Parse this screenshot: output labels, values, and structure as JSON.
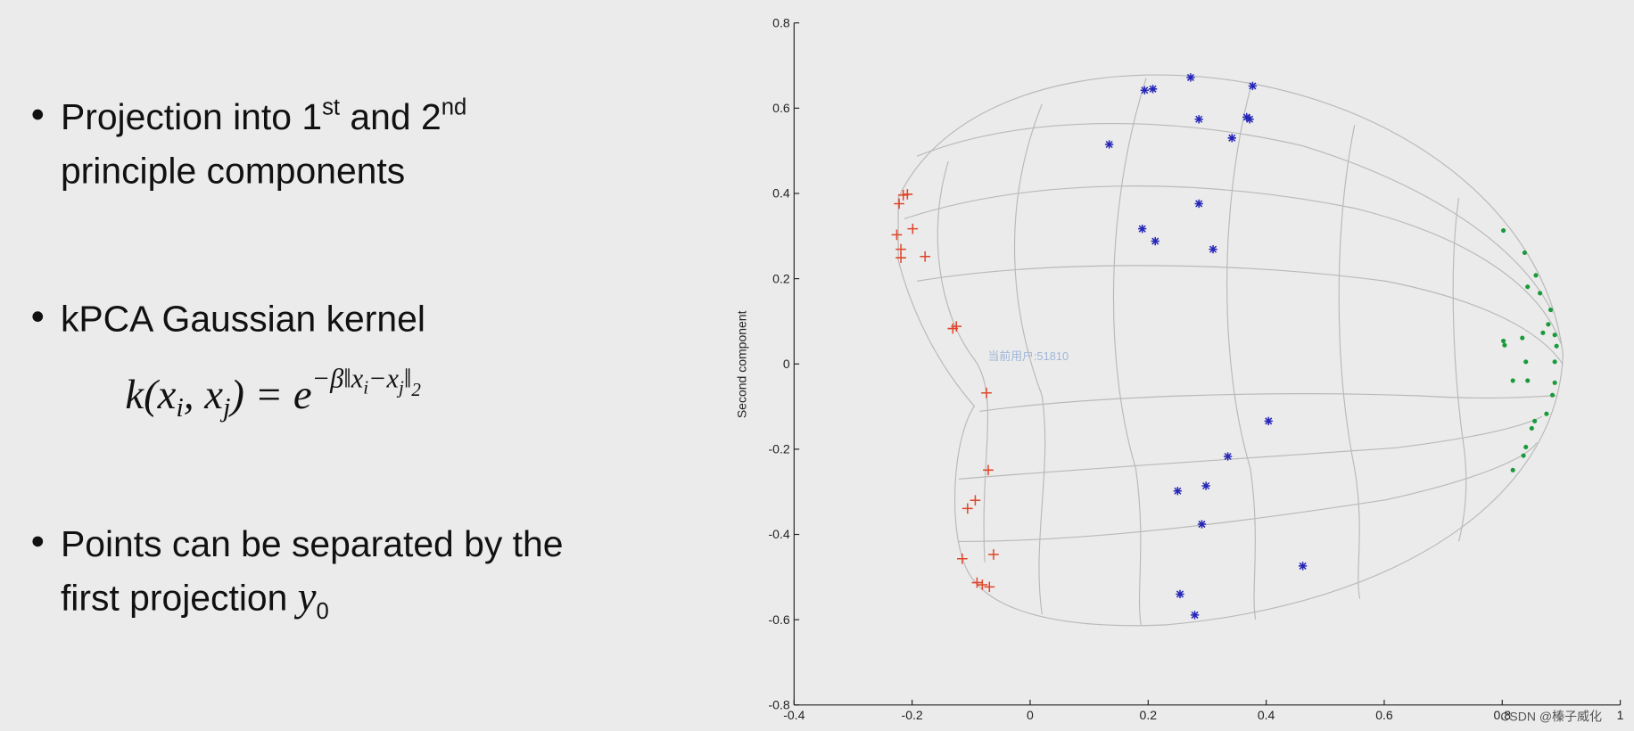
{
  "slide": {
    "bullets": [
      {
        "line1": [
          "Projection into 1",
          "st",
          " and 2",
          "nd"
        ],
        "line2": "principle components"
      },
      {
        "line1": "kPCA Gaussian kernel",
        "formula": [
          "k(",
          "x",
          "i",
          ", ",
          "x",
          "j",
          ") = ",
          "e",
          "−β‖x",
          "i",
          "−x",
          "j",
          "‖",
          "2"
        ]
      },
      {
        "line1": "Points can be separated by the",
        "line2": [
          "first projection ",
          "y",
          "0"
        ]
      }
    ],
    "watermark": "当前用户:51810",
    "credit": "CSDN @榛子威化"
  },
  "chart_data": {
    "type": "scatter",
    "ylabel": "Second component",
    "xlim": [
      -0.4,
      1
    ],
    "ylim": [
      -0.8,
      0.8
    ],
    "xticks": [
      -0.4,
      -0.2,
      0,
      0.2,
      0.4,
      0.6,
      0.8,
      1
    ],
    "yticks": [
      -0.8,
      -0.6,
      -0.4,
      -0.2,
      0,
      0.2,
      0.4,
      0.6,
      0.8
    ],
    "series": [
      {
        "color": "#e0452a",
        "marker": "+",
        "x": [
          -0.208,
          -0.215,
          -0.222,
          -0.199,
          -0.226,
          -0.219,
          -0.219,
          -0.178,
          -0.131,
          -0.125,
          -0.074,
          -0.071,
          -0.093,
          -0.106,
          -0.115,
          -0.062,
          -0.09,
          -0.081,
          -0.069
        ],
        "y": [
          0.398,
          0.396,
          0.376,
          0.317,
          0.303,
          0.269,
          0.249,
          0.252,
          0.083,
          0.088,
          -0.068,
          -0.249,
          -0.32,
          -0.339,
          -0.457,
          -0.447,
          -0.513,
          -0.518,
          -0.523
        ]
      },
      {
        "color": "#2626b8",
        "marker": "*",
        "x": [
          0.272,
          0.377,
          0.194,
          0.208,
          0.286,
          0.367,
          0.372,
          0.342,
          0.134,
          0.286,
          0.19,
          0.212,
          0.31,
          0.404,
          0.335,
          0.298,
          0.25,
          0.291,
          0.462,
          0.254,
          0.279
        ],
        "y": [
          0.672,
          0.652,
          0.642,
          0.645,
          0.574,
          0.579,
          0.574,
          0.53,
          0.515,
          0.376,
          0.317,
          0.288,
          0.269,
          -0.134,
          -0.217,
          -0.286,
          -0.298,
          -0.376,
          -0.474,
          -0.54,
          -0.589
        ]
      },
      {
        "color": "#1a9a3a",
        "marker": ".",
        "x": [
          0.802,
          0.838,
          0.857,
          0.843,
          0.864,
          0.882,
          0.878,
          0.889,
          0.869,
          0.892,
          0.802,
          0.804,
          0.834,
          0.84,
          0.889,
          0.818,
          0.843,
          0.889,
          0.885,
          0.875,
          0.855,
          0.85,
          0.84,
          0.836,
          0.818
        ],
        "y": [
          0.313,
          0.261,
          0.208,
          0.181,
          0.166,
          0.127,
          0.093,
          0.068,
          0.073,
          0.042,
          0.054,
          0.044,
          0.061,
          0.005,
          0.005,
          -0.039,
          -0.039,
          -0.044,
          -0.073,
          -0.117,
          -0.134,
          -0.151,
          -0.195,
          -0.215,
          -0.249
        ]
      }
    ]
  }
}
